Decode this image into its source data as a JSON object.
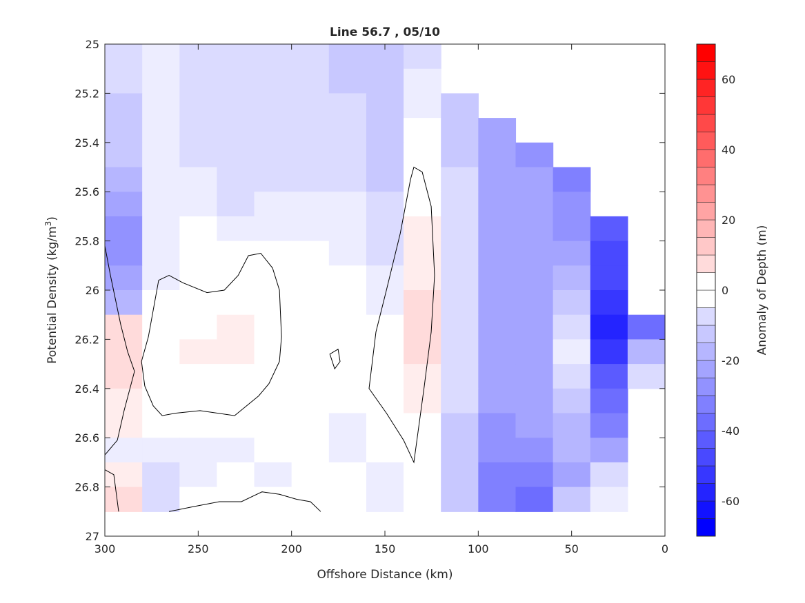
{
  "chart_data": {
    "type": "heatmap",
    "title": "Line 56.7 , 05/10",
    "xlabel": "Offshore Distance (km)",
    "ylabel_main": "Potential Density (kg/m",
    "ylabel_sup": "3",
    "ylabel_end": ")",
    "xlim": [
      300,
      0
    ],
    "ylim": [
      25,
      27
    ],
    "x_reversed": true,
    "y_reversed": true,
    "xticks": [
      300,
      250,
      200,
      150,
      100,
      50,
      0
    ],
    "xtick_labels": [
      "300",
      "250",
      "200",
      "150",
      "100",
      "50",
      "0"
    ],
    "yticks": [
      25,
      25.2,
      25.4,
      25.6,
      25.8,
      26,
      26.2,
      26.4,
      26.6,
      26.8,
      27
    ],
    "ytick_labels": [
      "25",
      "25.2",
      "25.4",
      "25.6",
      "25.8",
      "26",
      "26.2",
      "26.4",
      "26.6",
      "26.8",
      "27"
    ],
    "x_centers": [
      290,
      270,
      250,
      230,
      210,
      190,
      170,
      150,
      130,
      110,
      90,
      70,
      50,
      30,
      10
    ],
    "x_cell_width": 20,
    "y_centers": [
      25.05,
      25.15,
      25.25,
      25.35,
      25.45,
      25.55,
      25.65,
      25.75,
      25.85,
      25.95,
      26.05,
      26.15,
      26.25,
      26.35,
      26.45,
      26.55,
      26.65,
      26.75,
      26.85
    ],
    "y_cell_height": 0.1,
    "values": [
      [
        -10,
        -5,
        -10,
        -10,
        -10,
        -10,
        -15,
        -15,
        -10,
        null,
        null,
        null,
        null,
        null,
        null
      ],
      [
        -10,
        -5,
        -10,
        -10,
        -10,
        -10,
        -15,
        -15,
        -5,
        null,
        null,
        null,
        null,
        null,
        null
      ],
      [
        -15,
        -5,
        -10,
        -10,
        -10,
        -10,
        -10,
        -15,
        -5,
        -15,
        null,
        null,
        null,
        null,
        null
      ],
      [
        -15,
        -5,
        -10,
        -10,
        -10,
        -10,
        -10,
        -15,
        0,
        -15,
        -25,
        null,
        null,
        null,
        null
      ],
      [
        -15,
        -5,
        -10,
        -10,
        -10,
        -10,
        -10,
        -15,
        0,
        -15,
        -25,
        -30,
        null,
        null,
        null
      ],
      [
        -20,
        -5,
        -5,
        -10,
        -10,
        -10,
        -10,
        -15,
        0,
        -10,
        -25,
        -25,
        -35,
        null,
        null
      ],
      [
        -25,
        -5,
        -5,
        -10,
        -5,
        -5,
        -5,
        -10,
        0,
        -10,
        -25,
        -25,
        -30,
        null,
        null
      ],
      [
        -30,
        -5,
        0,
        -5,
        -5,
        -5,
        -5,
        -10,
        5,
        -10,
        -25,
        -25,
        -30,
        -45,
        null
      ],
      [
        -30,
        -5,
        0,
        0,
        0,
        0,
        -5,
        -10,
        5,
        -10,
        -25,
        -25,
        -25,
        -50,
        null
      ],
      [
        -25,
        -5,
        0,
        0,
        0,
        0,
        0,
        -5,
        5,
        -10,
        -25,
        -25,
        -20,
        -50,
        null
      ],
      [
        -20,
        0,
        0,
        0,
        0,
        0,
        0,
        -5,
        10,
        -10,
        -25,
        -25,
        -15,
        -55,
        null
      ],
      [
        10,
        0,
        0,
        5,
        0,
        0,
        0,
        0,
        10,
        -10,
        -25,
        -25,
        -10,
        -60,
        -40
      ],
      [
        10,
        0,
        5,
        5,
        0,
        0,
        0,
        0,
        10,
        -10,
        -25,
        -25,
        -5,
        -55,
        -20
      ],
      [
        10,
        0,
        0,
        0,
        0,
        0,
        0,
        0,
        5,
        -10,
        -25,
        -25,
        -10,
        -45,
        -10
      ],
      [
        5,
        0,
        0,
        0,
        0,
        0,
        0,
        0,
        5,
        -10,
        -25,
        -25,
        -15,
        -40,
        null
      ],
      [
        5,
        0,
        0,
        0,
        0,
        0,
        -5,
        0,
        0,
        -15,
        -30,
        -25,
        -20,
        -35,
        null
      ],
      [
        -5,
        -5,
        -5,
        -5,
        0,
        0,
        -5,
        0,
        0,
        -15,
        -30,
        -30,
        -20,
        -25,
        null
      ],
      [
        5,
        -10,
        -5,
        0,
        -5,
        0,
        0,
        -5,
        0,
        -15,
        -35,
        -35,
        -25,
        -10,
        null
      ],
      [
        10,
        -10,
        0,
        0,
        0,
        0,
        0,
        -5,
        0,
        -15,
        -35,
        -40,
        -15,
        -5,
        null
      ]
    ],
    "contour_level": 0,
    "contour_lines": [
      {
        "closed": true,
        "points": [
          [
            271.2,
            25.96
          ],
          [
            265.6,
            25.94
          ],
          [
            258.2,
            25.97
          ],
          [
            245.3,
            26.01
          ],
          [
            236.0,
            26.0
          ],
          [
            228.6,
            25.94
          ],
          [
            223.1,
            25.86
          ],
          [
            216.5,
            25.85
          ],
          [
            210.2,
            25.91
          ],
          [
            206.5,
            26.0
          ],
          [
            205.4,
            26.19
          ],
          [
            206.5,
            26.29
          ],
          [
            212.1,
            26.38
          ],
          [
            217.6,
            26.43
          ],
          [
            230.5,
            26.51
          ],
          [
            249.0,
            26.49
          ],
          [
            261.9,
            26.5
          ],
          [
            269.3,
            26.51
          ],
          [
            274.1,
            26.47
          ],
          [
            278.6,
            26.39
          ],
          [
            280.4,
            26.29
          ],
          [
            276.7,
            26.19
          ]
        ]
      },
      {
        "closed": true,
        "points": [
          [
            134.5,
            25.5
          ],
          [
            130.0,
            25.52
          ],
          [
            125.2,
            25.66
          ],
          [
            123.4,
            25.94
          ],
          [
            125.2,
            26.17
          ],
          [
            128.9,
            26.39
          ],
          [
            134.5,
            26.7
          ],
          [
            140.0,
            26.61
          ],
          [
            149.2,
            26.5
          ],
          [
            158.5,
            26.4
          ],
          [
            154.8,
            26.17
          ],
          [
            149.2,
            26.0
          ],
          [
            141.8,
            25.77
          ],
          [
            136.3,
            25.55
          ]
        ]
      },
      {
        "closed": true,
        "points": [
          [
            179.5,
            26.26
          ],
          [
            175.1,
            26.24
          ],
          [
            174.0,
            26.29
          ],
          [
            176.9,
            26.32
          ]
        ]
      },
      {
        "closed": false,
        "points": [
          [
            300,
            25.82
          ],
          [
            297,
            25.94
          ],
          [
            291.5,
            26.14
          ],
          [
            287.8,
            26.25
          ],
          [
            284.1,
            26.33
          ],
          [
            289.7,
            26.49
          ],
          [
            293.3,
            26.61
          ],
          [
            300,
            26.67
          ]
        ]
      },
      {
        "closed": false,
        "points": [
          [
            300,
            26.73
          ],
          [
            295.2,
            26.75
          ],
          [
            292.6,
            26.9
          ]
        ]
      },
      {
        "closed": false,
        "points": [
          [
            265.6,
            26.9
          ],
          [
            252.7,
            26.88
          ],
          [
            238.7,
            26.86
          ],
          [
            226.9,
            26.86
          ],
          [
            215.8,
            26.82
          ],
          [
            206.5,
            26.83
          ],
          [
            197.3,
            26.85
          ],
          [
            189.9,
            26.86
          ],
          [
            184.4,
            26.9
          ]
        ]
      }
    ],
    "colorbar": {
      "label": "Anomaly of Depth (m)",
      "clim": [
        -70,
        70
      ],
      "level_step": 5,
      "ticks": [
        60,
        40,
        20,
        0,
        -20,
        -40,
        -60
      ],
      "tick_labels": [
        "60",
        "40",
        "20",
        "0",
        "-20",
        "-40",
        "-60"
      ],
      "colormap": "blue-white-red",
      "neg_color": "#0000ff",
      "pos_color": "#ff0000"
    }
  }
}
